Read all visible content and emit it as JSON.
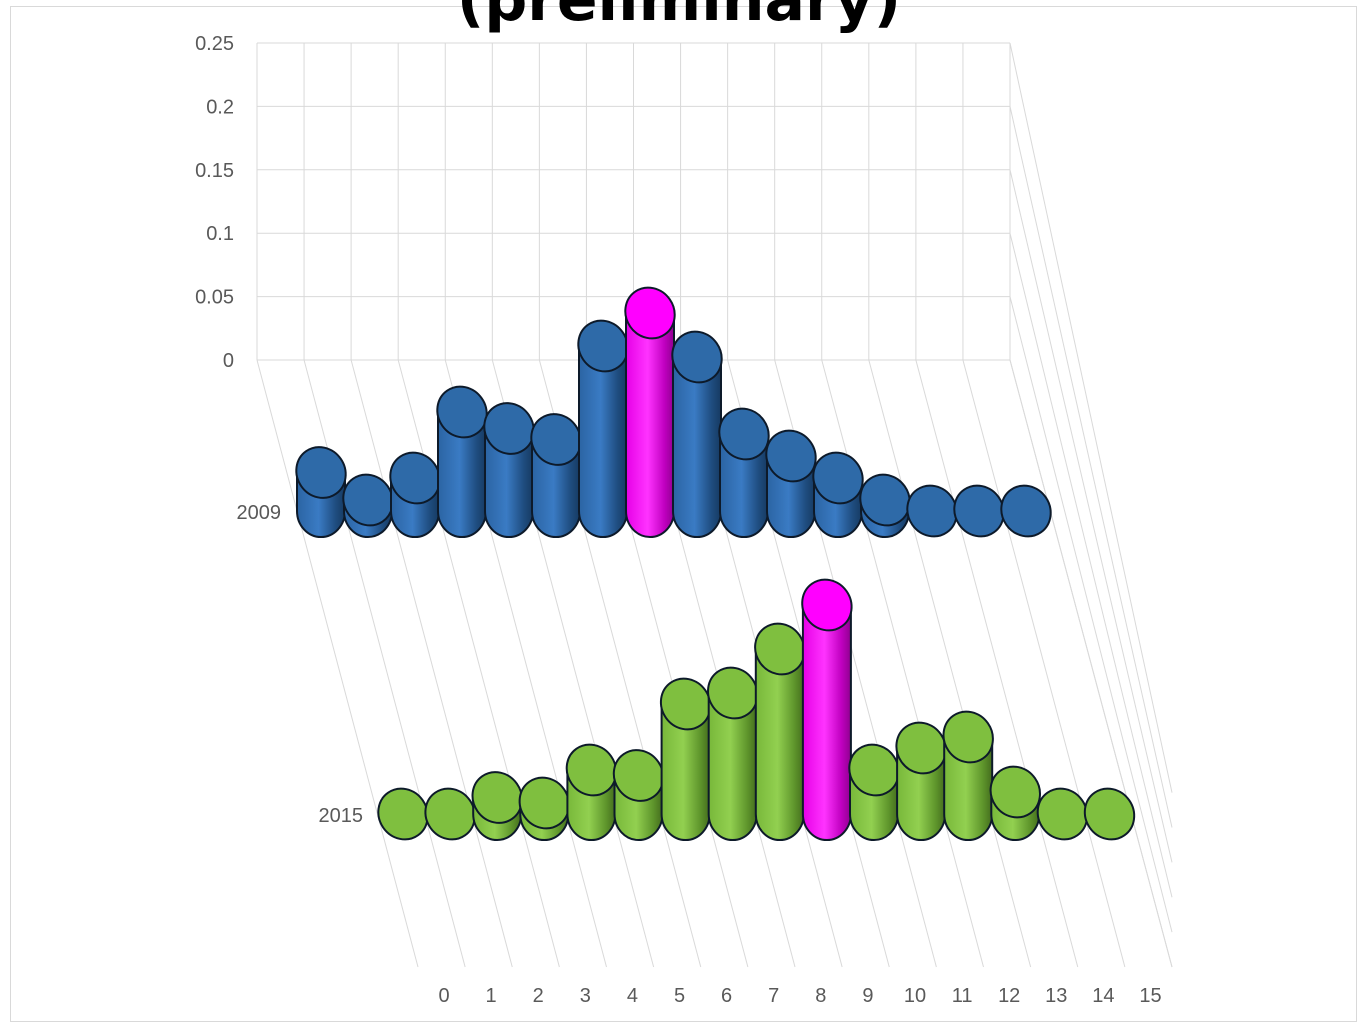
{
  "chart_data": {
    "type": "bar",
    "subtype": "3d-cylinder",
    "title": "(preliminary)",
    "categories": [
      "0",
      "1",
      "2",
      "3",
      "4",
      "5",
      "6",
      "7",
      "8",
      "9",
      "10",
      "11",
      "12",
      "13",
      "14",
      "15"
    ],
    "series": [
      {
        "name": "2009",
        "values": [
          0.035,
          0.01,
          0.03,
          0.09,
          0.075,
          0.065,
          0.15,
          0.18,
          0.14,
          0.07,
          0.05,
          0.03,
          0.01,
          0.0,
          0.0,
          0.0
        ],
        "highlight_index": 7
      },
      {
        "name": "2015",
        "values": [
          0.0,
          0.0,
          0.015,
          0.01,
          0.04,
          0.035,
          0.1,
          0.11,
          0.15,
          0.19,
          0.04,
          0.06,
          0.07,
          0.02,
          0.0,
          0.0
        ],
        "highlight_index": 9
      }
    ],
    "ylim": [
      0,
      0.25
    ],
    "yticks": [
      "0",
      "0.05",
      "0.1",
      "0.15",
      "0.2",
      "0.25"
    ],
    "grid": true,
    "colors": {
      "2009": "#2e6aa8",
      "2015": "#7fbf3f",
      "highlight": "#ff00ff",
      "grid": "#d9d9d9",
      "text": "#595959"
    }
  }
}
